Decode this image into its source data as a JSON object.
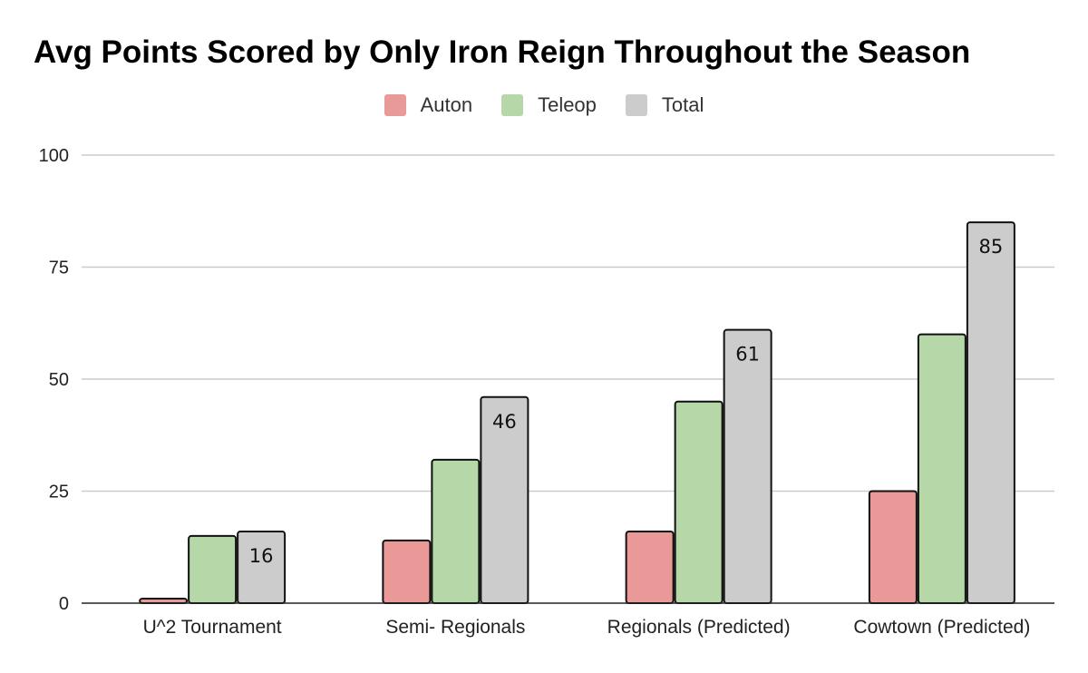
{
  "chart_data": {
    "type": "bar",
    "title": "Avg Points Scored by Only Iron Reign Throughout the Season",
    "xlabel": "",
    "ylabel": "",
    "categories": [
      "U^2 Tournament",
      "Semi- Regionals",
      "Regionals (Predicted)",
      "Cowtown (Predicted)"
    ],
    "series": [
      {
        "name": "Auton",
        "color": "#ea9999",
        "values": [
          1,
          14,
          16,
          25
        ]
      },
      {
        "name": "Teleop",
        "color": "#b6d7a8",
        "values": [
          15,
          32,
          45,
          60
        ]
      },
      {
        "name": "Total",
        "color": "#cccccc",
        "values": [
          16,
          46,
          61,
          85
        ],
        "data_labels": [
          "16",
          "46",
          "61",
          "85"
        ]
      }
    ],
    "ylim": [
      0,
      100
    ],
    "yticks": [
      "0",
      "25",
      "50",
      "75",
      "100"
    ],
    "grid": true,
    "legend_position": "top-center"
  }
}
